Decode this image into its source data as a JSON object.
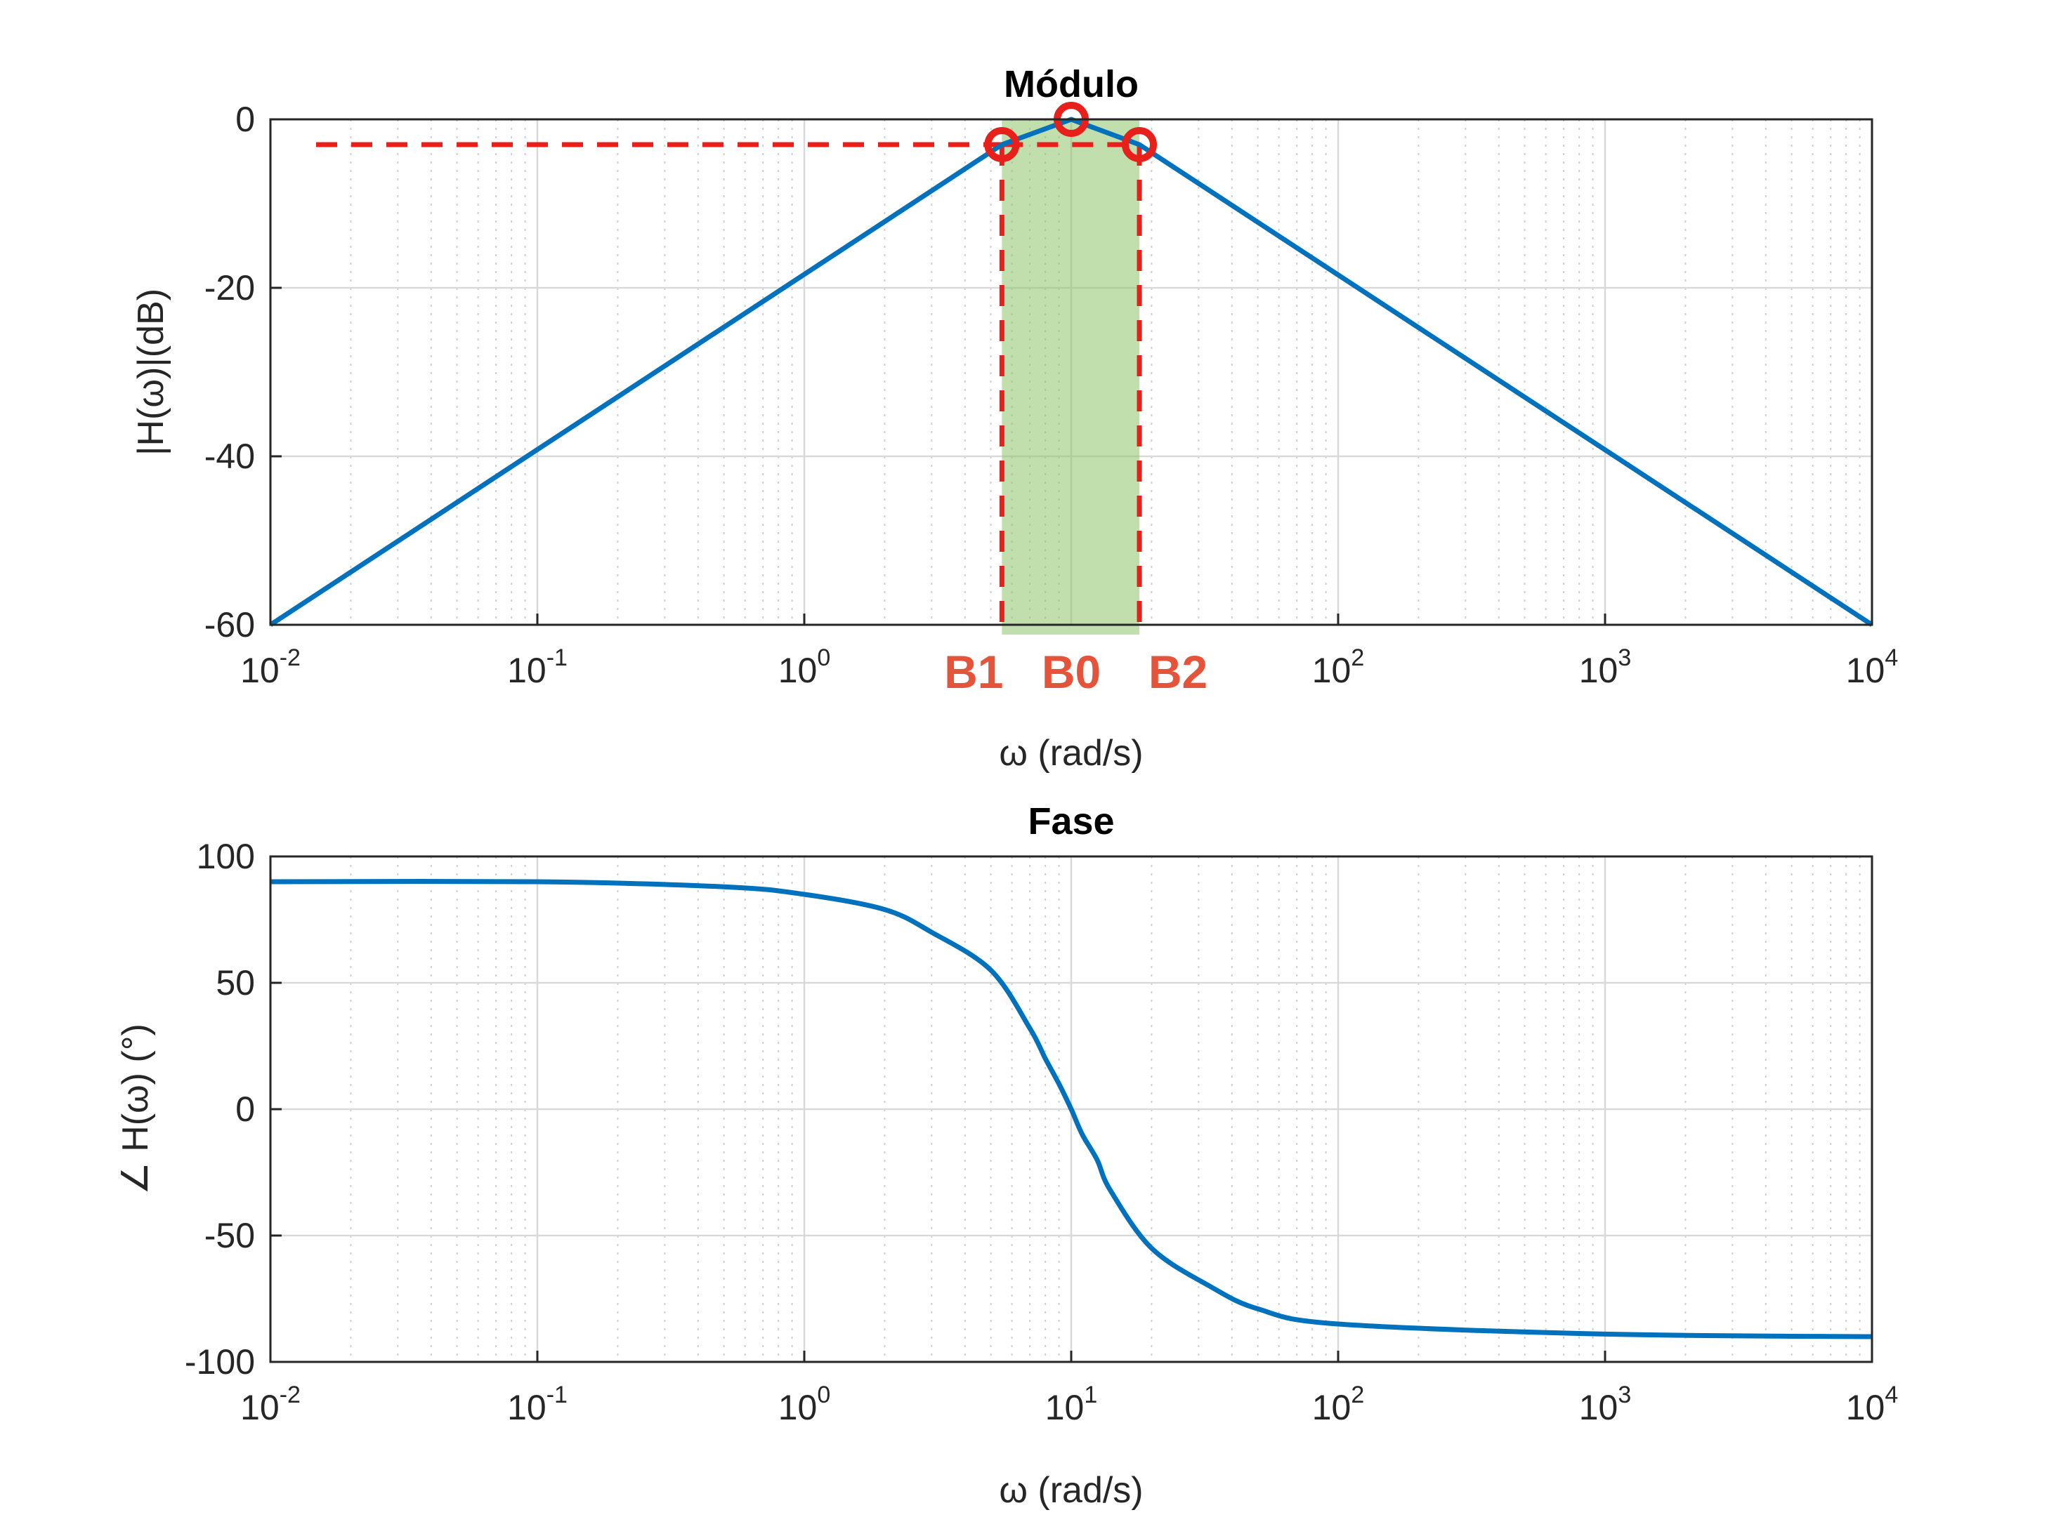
{
  "colors": {
    "line": "#0072BD",
    "marker": "#e8201b",
    "band_fill": "#8cc46a",
    "band_label": "#e5533b",
    "grid": "#d9d9d9"
  },
  "chart_data": [
    {
      "type": "line",
      "title": "Módulo",
      "xlabel": "ω (rad/s)",
      "ylabel": "|H(ω)|(dB)",
      "xscale": "log",
      "xlim": [
        0.01,
        10000
      ],
      "ylim": [
        -60,
        0
      ],
      "xticks": [
        {
          "base": "10",
          "exp": "-2"
        },
        {
          "base": "10",
          "exp": "-1"
        },
        {
          "base": "10",
          "exp": "0"
        },
        {
          "base": "10",
          "exp": "2"
        },
        {
          "base": "10",
          "exp": "3"
        },
        {
          "base": "10",
          "exp": "4"
        }
      ],
      "yticks": [
        "0",
        "-20",
        "-40",
        "-60"
      ],
      "grid": true,
      "series": [
        {
          "x": [
            0.01,
            5.5,
            10,
            18,
            10000
          ],
          "y": [
            -60,
            -3,
            0,
            -3,
            -60
          ]
        }
      ],
      "markers": [
        {
          "x": 5.5,
          "y": -3
        },
        {
          "x": 10,
          "y": 0
        },
        {
          "x": 18,
          "y": -3
        }
      ],
      "reference_level_db": -3,
      "band": {
        "x_start": 5.5,
        "x_end": 18
      },
      "annotations": [
        "B1",
        "B0",
        "B2"
      ]
    },
    {
      "type": "line",
      "title": "Fase",
      "xlabel": "ω (rad/s)",
      "ylabel": "∠ H(ω) (°)",
      "xscale": "log",
      "xlim": [
        0.01,
        10000
      ],
      "ylim": [
        -100,
        100
      ],
      "xticks": [
        {
          "base": "10",
          "exp": "-2"
        },
        {
          "base": "10",
          "exp": "-1"
        },
        {
          "base": "10",
          "exp": "0"
        },
        {
          "base": "10",
          "exp": "1"
        },
        {
          "base": "10",
          "exp": "2"
        },
        {
          "base": "10",
          "exp": "3"
        },
        {
          "base": "10",
          "exp": "4"
        }
      ],
      "yticks": [
        "100",
        "50",
        "0",
        "-50",
        "-100"
      ],
      "grid": true,
      "series": [
        {
          "x": [
            0.01,
            0.1,
            0.5,
            1,
            2,
            3,
            5,
            7,
            8,
            9,
            10,
            11,
            12.5,
            14,
            20,
            33,
            50,
            100,
            1000,
            10000
          ],
          "y": [
            90,
            90,
            88,
            85,
            79,
            70,
            55,
            32,
            20,
            10,
            0,
            -10,
            -20,
            -32,
            -55,
            -70,
            -79,
            -85,
            -89,
            -90
          ]
        }
      ]
    }
  ]
}
